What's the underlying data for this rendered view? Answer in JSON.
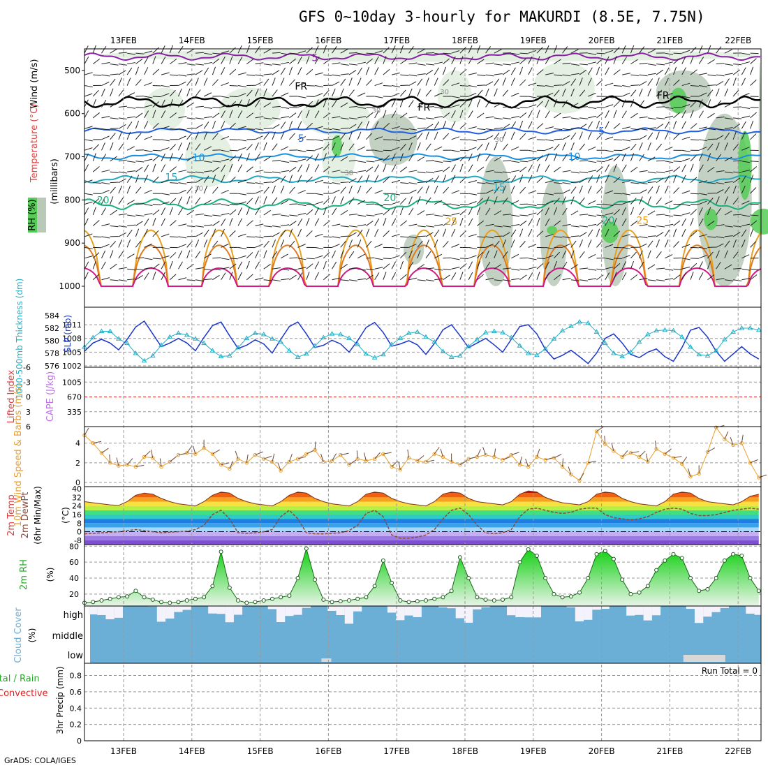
{
  "title": "GFS 0~10day 3-hourly for MAKURDI (8.5E, 7.75N)",
  "credit": "GrADS: COLA/IGES",
  "dates": [
    "13FEB",
    "14FEB",
    "15FEB",
    "16FEB",
    "17FEB",
    "18FEB",
    "19FEB",
    "20FEB",
    "21FEB",
    "22FEB"
  ],
  "colors": {
    "bg": "#ffffff",
    "grid": "#999999",
    "rh_light": "#dfeedd",
    "rh_mid": "#b9c9b8",
    "rh_dark": "#55cc55",
    "cloud": "#6baed6",
    "cloud_gap": "#f4f2fb",
    "precip_total": "#22aa22",
    "precip_conv": "#dd2222"
  },
  "chart_data": [
    {
      "type": "heatmap",
      "panel": "upper-air",
      "ylabel_parts": [
        "Wind (m/s)",
        "Temperature (°C)",
        "RH (%)",
        "(millibars)"
      ],
      "yticks": [
        500,
        600,
        700,
        800,
        900,
        1000
      ],
      "ylim": [
        450,
        1000
      ],
      "rh_legend": "RH (%)",
      "contour_labels": [
        {
          "text": "5",
          "t": 2.8,
          "p": 478,
          "color": "#8b1fa8"
        },
        {
          "text": "FR",
          "t": 2.6,
          "p": 545,
          "color": "#000000"
        },
        {
          "text": "FR",
          "t": 4.4,
          "p": 593,
          "color": "#000000"
        },
        {
          "text": "FR",
          "t": 7.9,
          "p": 566,
          "color": "#000000"
        },
        {
          "text": "5",
          "t": 2.6,
          "p": 665,
          "color": "#1f5fe0"
        },
        {
          "text": "5",
          "t": 7.0,
          "p": 648,
          "color": "#1f5fe0"
        },
        {
          "text": "10",
          "t": 1.1,
          "p": 710,
          "color": "#1a8fe0"
        },
        {
          "text": "10",
          "t": 6.6,
          "p": 707,
          "color": "#1a8fe0"
        },
        {
          "text": "15",
          "t": 0.7,
          "p": 755,
          "color": "#20a8c0"
        },
        {
          "text": "15",
          "t": 5.5,
          "p": 778,
          "color": "#20a8c0"
        },
        {
          "text": "20",
          "t": -0.3,
          "p": 808,
          "color": "#18b07a"
        },
        {
          "text": "20",
          "t": 3.9,
          "p": 803,
          "color": "#18b07a"
        },
        {
          "text": "20",
          "t": 7.1,
          "p": 855,
          "color": "#18b07a"
        },
        {
          "text": "25",
          "t": 4.8,
          "p": 858,
          "color": "#e8a020"
        },
        {
          "text": "25",
          "t": 7.6,
          "p": 855,
          "color": "#e8a020"
        },
        {
          "text": "30",
          "t": 4.7,
          "p": 555,
          "color": "#888888"
        },
        {
          "text": "30",
          "t": 3.7,
          "p": 598,
          "color": "#888888"
        },
        {
          "text": "30",
          "t": 5.5,
          "p": 665,
          "color": "#888888"
        },
        {
          "text": "30",
          "t": 1.1,
          "p": 778,
          "color": "#888888"
        },
        {
          "text": "30",
          "t": 3.3,
          "p": 743,
          "color": "#888888"
        }
      ]
    },
    {
      "type": "line",
      "panel": "slp-thickness",
      "ylabel_left": "1000-500mb Thickness (dm)",
      "ylabel_right": "SLP (mb)",
      "yticks_left": [
        576,
        578,
        580,
        582,
        584
      ],
      "yticks_right": [
        1002,
        1005,
        1008,
        1011
      ],
      "ylim_slp": [
        1002,
        1013
      ],
      "ylim_thk": [
        576,
        584
      ],
      "series": [
        {
          "name": "SLP (mb)",
          "color": "#1a36c8",
          "values": [
            1005.2,
            1007.0,
            1007.8,
            1007.0,
            1005.5,
            1007.8,
            1010.5,
            1011.8,
            1009.0,
            1006.2,
            1007.0,
            1008.0,
            1007.0,
            1005.3,
            1008.2,
            1010.8,
            1011.6,
            1008.6,
            1005.8,
            1006.5,
            1007.7,
            1006.8,
            1004.8,
            1007.8,
            1010.6,
            1011.6,
            1009.0,
            1006.0,
            1006.5,
            1007.6,
            1006.8,
            1005.0,
            1007.5,
            1010.4,
            1011.5,
            1009.3,
            1006.3,
            1006.8,
            1007.5,
            1006.6,
            1004.5,
            1006.9,
            1009.9,
            1011.0,
            1008.6,
            1006.0,
            1007.0,
            1008.0,
            1006.6,
            1005.0,
            1007.8,
            1010.6,
            1011.0,
            1009.0,
            1005.6,
            1003.5,
            1004.3,
            1005.4,
            1004.0,
            1002.5,
            1004.8,
            1008.0,
            1009.0,
            1007.0,
            1004.5,
            1003.8,
            1005.0,
            1005.7,
            1004.0,
            1003.0,
            1006.0,
            1009.8,
            1010.4,
            1008.3,
            1005.2,
            1003.0,
            1004.6,
            1006.2,
            1004.6,
            1003.5
          ]
        },
        {
          "name": "1000-500mb Thickness (dm)",
          "color": "#20b0c8",
          "marker": "triangle",
          "values": [
            579.0,
            580.5,
            581.5,
            581.5,
            580.3,
            579.6,
            578.0,
            576.8,
            577.6,
            579.3,
            580.6,
            581.2,
            580.9,
            580.3,
            579.6,
            578.4,
            577.5,
            577.6,
            578.9,
            580.4,
            581.2,
            581.0,
            580.3,
            579.8,
            578.4,
            577.4,
            577.9,
            579.2,
            580.5,
            581.1,
            581.0,
            580.4,
            579.4,
            577.9,
            577.3,
            577.8,
            579.4,
            580.4,
            581.2,
            581.4,
            580.6,
            579.8,
            578.3,
            577.4,
            577.6,
            579.1,
            580.2,
            581.3,
            581.5,
            581.3,
            580.5,
            579.2,
            578.0,
            577.7,
            578.7,
            580.3,
            581.6,
            582.3,
            583.0,
            582.8,
            581.4,
            579.6,
            578.0,
            577.5,
            578.2,
            579.8,
            581.0,
            581.6,
            581.7,
            581.6,
            580.6,
            579.0,
            577.8,
            577.6,
            578.4,
            580.2,
            581.4,
            582.0,
            582.0,
            581.7
          ]
        }
      ]
    },
    {
      "type": "bar",
      "panel": "cape-li",
      "ylabel_left": "Lifted Index",
      "ylabel_right": "CAPE (J/kg)",
      "yticks_left": [
        6,
        3,
        0,
        -3,
        -6
      ],
      "yticks_right": [
        335,
        670,
        1005
      ],
      "ylim_cape": [
        0,
        1340
      ],
      "ylim_li": [
        6,
        -6
      ],
      "cape": [
        0,
        0,
        0,
        0,
        0,
        0,
        0,
        0,
        0,
        0,
        0,
        0,
        0,
        0,
        0,
        0,
        0,
        0,
        0,
        0,
        0,
        0,
        0,
        0,
        0,
        0,
        0,
        0,
        0,
        0,
        0,
        0,
        0,
        0,
        0,
        0,
        0,
        0,
        0,
        0,
        0,
        0,
        0,
        0,
        0,
        0,
        0,
        0,
        0,
        0,
        0,
        0,
        0,
        0,
        0,
        0,
        0,
        0,
        0,
        0,
        0,
        0,
        0,
        0,
        0,
        0,
        0,
        0,
        0,
        0,
        0,
        0,
        0,
        0,
        0,
        0,
        0,
        0,
        0,
        0
      ],
      "li": [
        6,
        6,
        6,
        6,
        6,
        6,
        6,
        6,
        6,
        6,
        6,
        6,
        6,
        6,
        6,
        6,
        6,
        6,
        6,
        6,
        6,
        6,
        6,
        6,
        6,
        6,
        6,
        6,
        6,
        6,
        6,
        6,
        6,
        6,
        6,
        6,
        6,
        6,
        6,
        6,
        6,
        6,
        6,
        6,
        6,
        6,
        6,
        6,
        6,
        6,
        6,
        6,
        6,
        6,
        6,
        6,
        6,
        6,
        6,
        6,
        6,
        6,
        6,
        6,
        6,
        6,
        6,
        6,
        6,
        6,
        6,
        6,
        6,
        6,
        6,
        6,
        6,
        6,
        6,
        6
      ]
    },
    {
      "type": "line",
      "panel": "wind10m",
      "ylabel": "10m Wind Speed & Barbs (m/s)",
      "yticks": [
        0,
        2,
        4
      ],
      "ylim": [
        0,
        5.4
      ],
      "series": [
        {
          "name": "10m wind speed",
          "color": "#e8a030",
          "values": [
            4.8,
            4.0,
            3.0,
            2.0,
            1.7,
            1.8,
            1.6,
            2.6,
            2.5,
            1.6,
            2.1,
            2.8,
            3.0,
            2.9,
            3.5,
            2.9,
            1.8,
            1.4,
            2.4,
            2.0,
            2.8,
            2.4,
            2.1,
            1.2,
            2.1,
            2.4,
            2.9,
            3.3,
            2.1,
            2.2,
            2.8,
            1.8,
            2.4,
            2.2,
            2.4,
            2.9,
            1.6,
            1.3,
            2.5,
            2.2,
            2.1,
            2.9,
            2.6,
            2.1,
            1.8,
            2.4,
            2.6,
            2.8,
            2.6,
            2.3,
            2.8,
            1.8,
            1.6,
            2.6,
            2.3,
            2.5,
            1.6,
            0.8,
            0.2,
            2.0,
            5.2,
            3.9,
            3.2,
            2.6,
            3.0,
            2.6,
            2.1,
            3.4,
            2.9,
            2.5,
            1.9,
            0.6,
            0.9,
            3.1,
            5.6,
            4.4,
            3.8,
            4.0,
            2.0,
            0.5,
            2.8,
            3.4,
            4.1,
            4.2,
            3.8,
            3.1,
            2.6
          ]
        }
      ]
    },
    {
      "type": "line",
      "panel": "temp2m",
      "ylabel": "2m Temp 2m DewPt (6hr Min/Max) (°C)",
      "yticks": [
        -8,
        0,
        8,
        16,
        24,
        32,
        40
      ],
      "ylim": [
        -12,
        42
      ],
      "series": [
        {
          "name": "2m Temp",
          "color": "#7a3010",
          "values": [
            28,
            27,
            26,
            25,
            24.5,
            28,
            34,
            36,
            35,
            31,
            28,
            26,
            25,
            24,
            28,
            34,
            37,
            36,
            31,
            28,
            26,
            25,
            24,
            28,
            34,
            37,
            36,
            31,
            28,
            26,
            25,
            24,
            28,
            35,
            37,
            36,
            31,
            28,
            26,
            25,
            24,
            28,
            35,
            37,
            36,
            31,
            28,
            27,
            26,
            25,
            28,
            35,
            38,
            37,
            32,
            29,
            27,
            26,
            25,
            28,
            35,
            37,
            36,
            31,
            28,
            26,
            25,
            24,
            28,
            35,
            37,
            36,
            31,
            28,
            27,
            26,
            25,
            28,
            33,
            35,
            34,
            30,
            28,
            27,
            26
          ]
        },
        {
          "name": "2m DewPt",
          "color": "#8b4a3a",
          "dashed": true,
          "values": [
            -2,
            -1.5,
            -1,
            -0.5,
            0,
            1,
            2,
            1,
            0,
            -1,
            -0.5,
            0,
            0.5,
            2,
            6,
            16,
            20,
            12,
            -1,
            -1.5,
            -1,
            0,
            2,
            14,
            20,
            12,
            -1,
            -2,
            -2,
            -1.5,
            -1,
            1,
            6,
            17,
            20,
            14,
            -3,
            -6,
            -6,
            -5,
            -3,
            2,
            12,
            20,
            22,
            16,
            6,
            -1,
            -2,
            -1,
            2,
            14,
            21,
            22,
            20,
            18,
            17,
            18,
            21,
            22,
            22,
            16,
            13,
            12,
            11,
            12,
            14,
            18,
            21,
            22,
            21,
            17,
            15,
            15,
            16,
            18,
            20,
            21,
            22,
            21,
            21,
            20,
            20,
            21,
            21,
            22
          ]
        }
      ]
    },
    {
      "type": "area",
      "panel": "rh2m",
      "ylabel": "2m RH (%)",
      "yticks": [
        20,
        40,
        60,
        80
      ],
      "ylim": [
        5,
        82
      ],
      "series": [
        {
          "name": "2m RH",
          "color": "#22aa22",
          "values": [
            9,
            10,
            12,
            14,
            16,
            17,
            24,
            16,
            13,
            10,
            9,
            10,
            12,
            14,
            16,
            30,
            73,
            28,
            12,
            9,
            10,
            12,
            14,
            16,
            18,
            40,
            77,
            38,
            13,
            10,
            11,
            12,
            14,
            16,
            30,
            62,
            34,
            12,
            10,
            11,
            12,
            14,
            16,
            24,
            66,
            40,
            16,
            13,
            12,
            13,
            16,
            60,
            76,
            68,
            40,
            20,
            16,
            17,
            22,
            40,
            70,
            74,
            64,
            38,
            20,
            22,
            30,
            50,
            62,
            70,
            65,
            40,
            24,
            26,
            40,
            62,
            70,
            68,
            40,
            24,
            44,
            46,
            50,
            62,
            70,
            73
          ]
        }
      ]
    },
    {
      "type": "bar",
      "panel": "cloud",
      "ylabel": "Cloud Cover (%)",
      "ytick_labels": [
        "high",
        "middle",
        "low"
      ]
    },
    {
      "type": "bar",
      "panel": "precip",
      "ylabel": "3hr Precip (mm)",
      "ylabel_left_parts": [
        "Total / Rain",
        "Convective"
      ],
      "yticks": [
        0,
        0.2,
        0.4,
        0.6,
        0.8
      ],
      "ylim": [
        0,
        0.95
      ],
      "annotation": "Run Total = 0",
      "values": []
    }
  ]
}
